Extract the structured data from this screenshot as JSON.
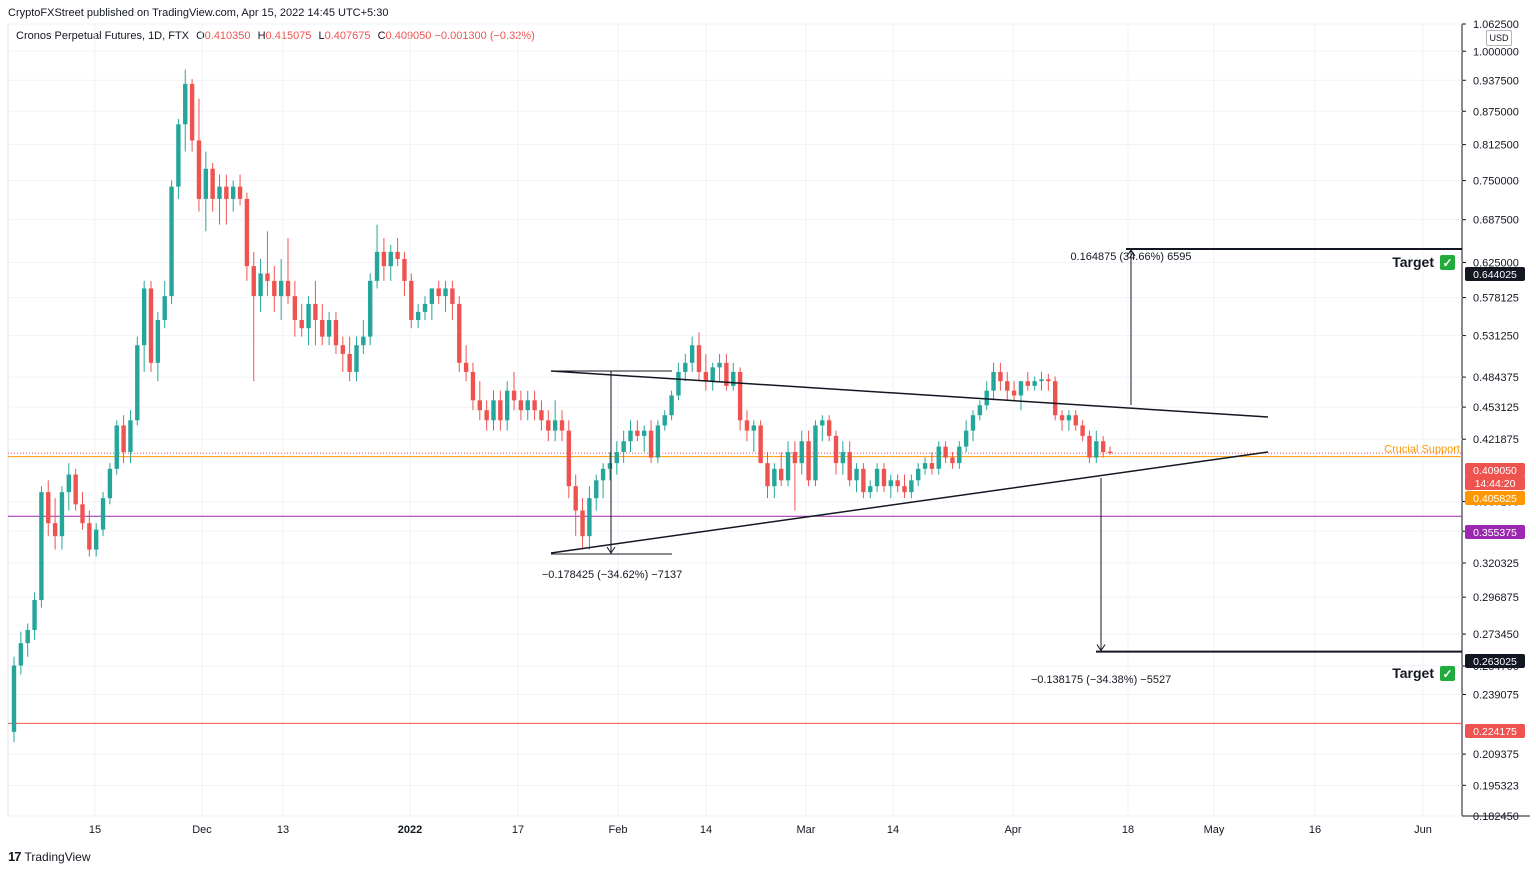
{
  "header": {
    "published": "CryptoFXStreet published on TradingView.com, Apr 15, 2022 14:45 UTC+5:30",
    "symbol": "Cronos Perpetual Futures, 1D, FTX",
    "o_label": "O",
    "o": "0.410350",
    "h_label": "H",
    "h": "0.415075",
    "l_label": "L",
    "l": "0.407675",
    "c_label": "C",
    "c": "0.409050",
    "change": "−0.001300 (−0.32%)"
  },
  "footer": {
    "brand": "TradingView",
    "logo": "17"
  },
  "chart_data": {
    "type": "candlestick",
    "y_scale": "log",
    "ylim": [
      0.18245,
      1.0625
    ],
    "currency": "USD",
    "y_ticks": [
      "0.182450",
      "0.195323",
      "0.209375",
      "0.239075",
      "0.254700",
      "0.273450",
      "0.296875",
      "0.320325",
      "0.343750",
      "0.367200",
      "0.421875",
      "0.453125",
      "0.484375",
      "0.531250",
      "0.578125",
      "0.625000",
      "0.687500",
      "0.750000",
      "0.812500",
      "0.875000",
      "0.937500",
      "1.000000",
      "1.062500"
    ],
    "x_ticks": [
      "15",
      "Dec",
      "13",
      "2022",
      "17",
      "Feb",
      "14",
      "Mar",
      "14",
      "Apr",
      "18",
      "May",
      "16",
      "Jun"
    ],
    "bold_x_ticks": [
      "2022"
    ],
    "price_labels": [
      {
        "text": "0.644025",
        "color": "#131722"
      },
      {
        "text": "0.409050",
        "color": "#ef5350"
      },
      {
        "text": "14:44:20",
        "color": "#ef5350"
      },
      {
        "text": "0.405825",
        "color": "#ff9800"
      },
      {
        "text": "0.355375",
        "color": "#9c27b0"
      },
      {
        "text": "0.263025",
        "color": "#131722"
      },
      {
        "text": "0.224175",
        "color": "#ef5350"
      }
    ],
    "horizontal_lines": [
      {
        "price": 0.405825,
        "color": "#ff9800",
        "label": "Crucial Support",
        "style": "solid"
      },
      {
        "price": 0.40905,
        "color": "#ef5350",
        "style": "dotted"
      },
      {
        "price": 0.355375,
        "color": "#9c27b0"
      },
      {
        "price": 0.224175,
        "color": "#ef5350"
      }
    ],
    "targets": [
      {
        "price": 0.644025,
        "label": "Target",
        "check": "✓"
      },
      {
        "price": 0.263025,
        "label": "Target",
        "check": "✓"
      }
    ],
    "measurements": [
      {
        "text": "0.164875 (34.66%) 6595"
      },
      {
        "text": "−0.178425 (−34.62%) −7137"
      },
      {
        "text": "−0.138175 (−34.38%) −5527"
      }
    ],
    "colors": {
      "up": "#26a69a",
      "down": "#ef5350",
      "line": "#131722",
      "grid": "#f0f3fa"
    },
    "candles": [
      {
        "o": 0.22,
        "h": 0.26,
        "l": 0.215,
        "c": 0.255
      },
      {
        "o": 0.255,
        "h": 0.275,
        "l": 0.25,
        "c": 0.268
      },
      {
        "o": 0.268,
        "h": 0.28,
        "l": 0.26,
        "c": 0.276
      },
      {
        "o": 0.276,
        "h": 0.3,
        "l": 0.27,
        "c": 0.295
      },
      {
        "o": 0.295,
        "h": 0.38,
        "l": 0.29,
        "c": 0.375
      },
      {
        "o": 0.375,
        "h": 0.385,
        "l": 0.34,
        "c": 0.35
      },
      {
        "o": 0.35,
        "h": 0.37,
        "l": 0.33,
        "c": 0.34
      },
      {
        "o": 0.34,
        "h": 0.38,
        "l": 0.33,
        "c": 0.375
      },
      {
        "o": 0.375,
        "h": 0.4,
        "l": 0.36,
        "c": 0.39
      },
      {
        "o": 0.39,
        "h": 0.395,
        "l": 0.36,
        "c": 0.365
      },
      {
        "o": 0.365,
        "h": 0.375,
        "l": 0.345,
        "c": 0.35
      },
      {
        "o": 0.35,
        "h": 0.36,
        "l": 0.325,
        "c": 0.33
      },
      {
        "o": 0.33,
        "h": 0.35,
        "l": 0.325,
        "c": 0.345
      },
      {
        "o": 0.345,
        "h": 0.375,
        "l": 0.34,
        "c": 0.37
      },
      {
        "o": 0.37,
        "h": 0.4,
        "l": 0.365,
        "c": 0.395
      },
      {
        "o": 0.395,
        "h": 0.44,
        "l": 0.39,
        "c": 0.435
      },
      {
        "o": 0.435,
        "h": 0.445,
        "l": 0.4,
        "c": 0.41
      },
      {
        "o": 0.41,
        "h": 0.45,
        "l": 0.4,
        "c": 0.44
      },
      {
        "o": 0.44,
        "h": 0.53,
        "l": 0.435,
        "c": 0.52
      },
      {
        "o": 0.52,
        "h": 0.6,
        "l": 0.49,
        "c": 0.59
      },
      {
        "o": 0.59,
        "h": 0.6,
        "l": 0.49,
        "c": 0.5
      },
      {
        "o": 0.5,
        "h": 0.56,
        "l": 0.48,
        "c": 0.55
      },
      {
        "o": 0.55,
        "h": 0.6,
        "l": 0.54,
        "c": 0.58
      },
      {
        "o": 0.58,
        "h": 0.75,
        "l": 0.57,
        "c": 0.74
      },
      {
        "o": 0.74,
        "h": 0.86,
        "l": 0.72,
        "c": 0.85
      },
      {
        "o": 0.85,
        "h": 0.96,
        "l": 0.8,
        "c": 0.93
      },
      {
        "o": 0.93,
        "h": 0.94,
        "l": 0.8,
        "c": 0.82
      },
      {
        "o": 0.82,
        "h": 0.9,
        "l": 0.7,
        "c": 0.72
      },
      {
        "o": 0.72,
        "h": 0.8,
        "l": 0.67,
        "c": 0.77
      },
      {
        "o": 0.77,
        "h": 0.78,
        "l": 0.7,
        "c": 0.72
      },
      {
        "o": 0.72,
        "h": 0.76,
        "l": 0.68,
        "c": 0.74
      },
      {
        "o": 0.74,
        "h": 0.76,
        "l": 0.68,
        "c": 0.72
      },
      {
        "o": 0.72,
        "h": 0.75,
        "l": 0.7,
        "c": 0.74
      },
      {
        "o": 0.74,
        "h": 0.76,
        "l": 0.71,
        "c": 0.72
      },
      {
        "o": 0.72,
        "h": 0.73,
        "l": 0.6,
        "c": 0.62
      },
      {
        "o": 0.62,
        "h": 0.64,
        "l": 0.48,
        "c": 0.58
      },
      {
        "o": 0.58,
        "h": 0.63,
        "l": 0.56,
        "c": 0.61
      },
      {
        "o": 0.61,
        "h": 0.67,
        "l": 0.58,
        "c": 0.6
      },
      {
        "o": 0.6,
        "h": 0.62,
        "l": 0.56,
        "c": 0.58
      },
      {
        "o": 0.58,
        "h": 0.63,
        "l": 0.55,
        "c": 0.6
      },
      {
        "o": 0.6,
        "h": 0.66,
        "l": 0.57,
        "c": 0.58
      },
      {
        "o": 0.58,
        "h": 0.6,
        "l": 0.53,
        "c": 0.55
      },
      {
        "o": 0.55,
        "h": 0.57,
        "l": 0.53,
        "c": 0.54
      },
      {
        "o": 0.54,
        "h": 0.58,
        "l": 0.52,
        "c": 0.57
      },
      {
        "o": 0.57,
        "h": 0.6,
        "l": 0.52,
        "c": 0.55
      },
      {
        "o": 0.55,
        "h": 0.57,
        "l": 0.52,
        "c": 0.53
      },
      {
        "o": 0.53,
        "h": 0.56,
        "l": 0.52,
        "c": 0.55
      },
      {
        "o": 0.55,
        "h": 0.56,
        "l": 0.51,
        "c": 0.52
      },
      {
        "o": 0.52,
        "h": 0.53,
        "l": 0.49,
        "c": 0.51
      },
      {
        "o": 0.51,
        "h": 0.53,
        "l": 0.48,
        "c": 0.49
      },
      {
        "o": 0.49,
        "h": 0.53,
        "l": 0.48,
        "c": 0.52
      },
      {
        "o": 0.52,
        "h": 0.55,
        "l": 0.51,
        "c": 0.53
      },
      {
        "o": 0.53,
        "h": 0.61,
        "l": 0.52,
        "c": 0.6
      },
      {
        "o": 0.6,
        "h": 0.68,
        "l": 0.59,
        "c": 0.64
      },
      {
        "o": 0.64,
        "h": 0.66,
        "l": 0.6,
        "c": 0.62
      },
      {
        "o": 0.62,
        "h": 0.65,
        "l": 0.6,
        "c": 0.64
      },
      {
        "o": 0.64,
        "h": 0.66,
        "l": 0.62,
        "c": 0.63
      },
      {
        "o": 0.63,
        "h": 0.64,
        "l": 0.58,
        "c": 0.6
      },
      {
        "o": 0.6,
        "h": 0.61,
        "l": 0.54,
        "c": 0.55
      },
      {
        "o": 0.55,
        "h": 0.57,
        "l": 0.54,
        "c": 0.56
      },
      {
        "o": 0.56,
        "h": 0.58,
        "l": 0.55,
        "c": 0.57
      },
      {
        "o": 0.57,
        "h": 0.59,
        "l": 0.55,
        "c": 0.59
      },
      {
        "o": 0.59,
        "h": 0.6,
        "l": 0.57,
        "c": 0.58
      },
      {
        "o": 0.58,
        "h": 0.6,
        "l": 0.56,
        "c": 0.59
      },
      {
        "o": 0.59,
        "h": 0.6,
        "l": 0.55,
        "c": 0.57
      },
      {
        "o": 0.57,
        "h": 0.58,
        "l": 0.49,
        "c": 0.5
      },
      {
        "o": 0.5,
        "h": 0.52,
        "l": 0.48,
        "c": 0.49
      },
      {
        "o": 0.49,
        "h": 0.5,
        "l": 0.45,
        "c": 0.46
      },
      {
        "o": 0.46,
        "h": 0.48,
        "l": 0.44,
        "c": 0.45
      },
      {
        "o": 0.45,
        "h": 0.46,
        "l": 0.43,
        "c": 0.44
      },
      {
        "o": 0.44,
        "h": 0.47,
        "l": 0.43,
        "c": 0.46
      },
      {
        "o": 0.46,
        "h": 0.47,
        "l": 0.43,
        "c": 0.44
      },
      {
        "o": 0.44,
        "h": 0.48,
        "l": 0.43,
        "c": 0.47
      },
      {
        "o": 0.47,
        "h": 0.49,
        "l": 0.45,
        "c": 0.46
      },
      {
        "o": 0.46,
        "h": 0.47,
        "l": 0.44,
        "c": 0.45
      },
      {
        "o": 0.45,
        "h": 0.47,
        "l": 0.44,
        "c": 0.46
      },
      {
        "o": 0.46,
        "h": 0.47,
        "l": 0.44,
        "c": 0.45
      },
      {
        "o": 0.45,
        "h": 0.46,
        "l": 0.43,
        "c": 0.44
      },
      {
        "o": 0.44,
        "h": 0.45,
        "l": 0.42,
        "c": 0.43
      },
      {
        "o": 0.43,
        "h": 0.46,
        "l": 0.42,
        "c": 0.44
      },
      {
        "o": 0.44,
        "h": 0.45,
        "l": 0.42,
        "c": 0.43
      },
      {
        "o": 0.43,
        "h": 0.44,
        "l": 0.37,
        "c": 0.38
      },
      {
        "o": 0.38,
        "h": 0.39,
        "l": 0.34,
        "c": 0.36
      },
      {
        "o": 0.36,
        "h": 0.37,
        "l": 0.33,
        "c": 0.34
      },
      {
        "o": 0.34,
        "h": 0.38,
        "l": 0.33,
        "c": 0.37
      },
      {
        "o": 0.37,
        "h": 0.39,
        "l": 0.36,
        "c": 0.385
      },
      {
        "o": 0.385,
        "h": 0.4,
        "l": 0.37,
        "c": 0.395
      },
      {
        "o": 0.395,
        "h": 0.41,
        "l": 0.385,
        "c": 0.4
      },
      {
        "o": 0.4,
        "h": 0.42,
        "l": 0.39,
        "c": 0.41
      },
      {
        "o": 0.41,
        "h": 0.43,
        "l": 0.4,
        "c": 0.42
      },
      {
        "o": 0.42,
        "h": 0.44,
        "l": 0.41,
        "c": 0.43
      },
      {
        "o": 0.43,
        "h": 0.44,
        "l": 0.42,
        "c": 0.425
      },
      {
        "o": 0.425,
        "h": 0.435,
        "l": 0.41,
        "c": 0.43
      },
      {
        "o": 0.43,
        "h": 0.44,
        "l": 0.4,
        "c": 0.405
      },
      {
        "o": 0.405,
        "h": 0.44,
        "l": 0.4,
        "c": 0.435
      },
      {
        "o": 0.435,
        "h": 0.45,
        "l": 0.43,
        "c": 0.445
      },
      {
        "o": 0.445,
        "h": 0.47,
        "l": 0.44,
        "c": 0.465
      },
      {
        "o": 0.465,
        "h": 0.5,
        "l": 0.46,
        "c": 0.49
      },
      {
        "o": 0.49,
        "h": 0.51,
        "l": 0.48,
        "c": 0.5
      },
      {
        "o": 0.5,
        "h": 0.53,
        "l": 0.49,
        "c": 0.52
      },
      {
        "o": 0.52,
        "h": 0.535,
        "l": 0.48,
        "c": 0.49
      },
      {
        "o": 0.49,
        "h": 0.51,
        "l": 0.47,
        "c": 0.48
      },
      {
        "o": 0.48,
        "h": 0.5,
        "l": 0.47,
        "c": 0.495
      },
      {
        "o": 0.495,
        "h": 0.51,
        "l": 0.48,
        "c": 0.5
      },
      {
        "o": 0.5,
        "h": 0.51,
        "l": 0.47,
        "c": 0.475
      },
      {
        "o": 0.475,
        "h": 0.5,
        "l": 0.47,
        "c": 0.49
      },
      {
        "o": 0.49,
        "h": 0.495,
        "l": 0.43,
        "c": 0.44
      },
      {
        "o": 0.44,
        "h": 0.45,
        "l": 0.42,
        "c": 0.43
      },
      {
        "o": 0.43,
        "h": 0.44,
        "l": 0.41,
        "c": 0.435
      },
      {
        "o": 0.435,
        "h": 0.44,
        "l": 0.4,
        "c": 0.4
      },
      {
        "o": 0.4,
        "h": 0.41,
        "l": 0.37,
        "c": 0.38
      },
      {
        "o": 0.38,
        "h": 0.4,
        "l": 0.37,
        "c": 0.395
      },
      {
        "o": 0.395,
        "h": 0.41,
        "l": 0.38,
        "c": 0.385
      },
      {
        "o": 0.385,
        "h": 0.42,
        "l": 0.38,
        "c": 0.41
      },
      {
        "o": 0.41,
        "h": 0.42,
        "l": 0.36,
        "c": 0.4
      },
      {
        "o": 0.4,
        "h": 0.43,
        "l": 0.39,
        "c": 0.42
      },
      {
        "o": 0.42,
        "h": 0.43,
        "l": 0.38,
        "c": 0.385
      },
      {
        "o": 0.385,
        "h": 0.44,
        "l": 0.38,
        "c": 0.435
      },
      {
        "o": 0.435,
        "h": 0.445,
        "l": 0.42,
        "c": 0.44
      },
      {
        "o": 0.44,
        "h": 0.445,
        "l": 0.42,
        "c": 0.425
      },
      {
        "o": 0.425,
        "h": 0.43,
        "l": 0.39,
        "c": 0.4
      },
      {
        "o": 0.4,
        "h": 0.42,
        "l": 0.39,
        "c": 0.41
      },
      {
        "o": 0.41,
        "h": 0.42,
        "l": 0.38,
        "c": 0.385
      },
      {
        "o": 0.385,
        "h": 0.4,
        "l": 0.375,
        "c": 0.395
      },
      {
        "o": 0.395,
        "h": 0.4,
        "l": 0.37,
        "c": 0.375
      },
      {
        "o": 0.375,
        "h": 0.385,
        "l": 0.37,
        "c": 0.38
      },
      {
        "o": 0.38,
        "h": 0.4,
        "l": 0.375,
        "c": 0.395
      },
      {
        "o": 0.395,
        "h": 0.4,
        "l": 0.375,
        "c": 0.38
      },
      {
        "o": 0.38,
        "h": 0.39,
        "l": 0.37,
        "c": 0.385
      },
      {
        "o": 0.385,
        "h": 0.39,
        "l": 0.375,
        "c": 0.38
      },
      {
        "o": 0.38,
        "h": 0.39,
        "l": 0.37,
        "c": 0.375
      },
      {
        "o": 0.375,
        "h": 0.39,
        "l": 0.37,
        "c": 0.385
      },
      {
        "o": 0.385,
        "h": 0.4,
        "l": 0.38,
        "c": 0.395
      },
      {
        "o": 0.395,
        "h": 0.405,
        "l": 0.39,
        "c": 0.4
      },
      {
        "o": 0.4,
        "h": 0.41,
        "l": 0.39,
        "c": 0.395
      },
      {
        "o": 0.395,
        "h": 0.42,
        "l": 0.39,
        "c": 0.415
      },
      {
        "o": 0.415,
        "h": 0.42,
        "l": 0.4,
        "c": 0.405
      },
      {
        "o": 0.405,
        "h": 0.41,
        "l": 0.395,
        "c": 0.4
      },
      {
        "o": 0.4,
        "h": 0.42,
        "l": 0.395,
        "c": 0.415
      },
      {
        "o": 0.415,
        "h": 0.44,
        "l": 0.41,
        "c": 0.43
      },
      {
        "o": 0.43,
        "h": 0.45,
        "l": 0.42,
        "c": 0.445
      },
      {
        "o": 0.445,
        "h": 0.46,
        "l": 0.44,
        "c": 0.455
      },
      {
        "o": 0.455,
        "h": 0.48,
        "l": 0.45,
        "c": 0.47
      },
      {
        "o": 0.47,
        "h": 0.5,
        "l": 0.46,
        "c": 0.49
      },
      {
        "o": 0.49,
        "h": 0.5,
        "l": 0.47,
        "c": 0.48
      },
      {
        "o": 0.48,
        "h": 0.49,
        "l": 0.46,
        "c": 0.47
      },
      {
        "o": 0.47,
        "h": 0.48,
        "l": 0.46,
        "c": 0.465
      },
      {
        "o": 0.465,
        "h": 0.48,
        "l": 0.45,
        "c": 0.48
      },
      {
        "o": 0.48,
        "h": 0.49,
        "l": 0.47,
        "c": 0.475
      },
      {
        "o": 0.475,
        "h": 0.485,
        "l": 0.47,
        "c": 0.48
      },
      {
        "o": 0.48,
        "h": 0.49,
        "l": 0.47,
        "c": 0.482
      },
      {
        "o": 0.482,
        "h": 0.488,
        "l": 0.47,
        "c": 0.48
      },
      {
        "o": 0.48,
        "h": 0.485,
        "l": 0.44,
        "c": 0.445
      },
      {
        "o": 0.445,
        "h": 0.45,
        "l": 0.43,
        "c": 0.44
      },
      {
        "o": 0.44,
        "h": 0.45,
        "l": 0.43,
        "c": 0.445
      },
      {
        "o": 0.445,
        "h": 0.45,
        "l": 0.43,
        "c": 0.435
      },
      {
        "o": 0.435,
        "h": 0.44,
        "l": 0.42,
        "c": 0.425
      },
      {
        "o": 0.425,
        "h": 0.43,
        "l": 0.4,
        "c": 0.405
      },
      {
        "o": 0.405,
        "h": 0.43,
        "l": 0.4,
        "c": 0.42
      },
      {
        "o": 0.42,
        "h": 0.425,
        "l": 0.405,
        "c": 0.41
      },
      {
        "o": 0.41035,
        "h": 0.415075,
        "l": 0.407675,
        "c": 0.40905
      }
    ]
  }
}
